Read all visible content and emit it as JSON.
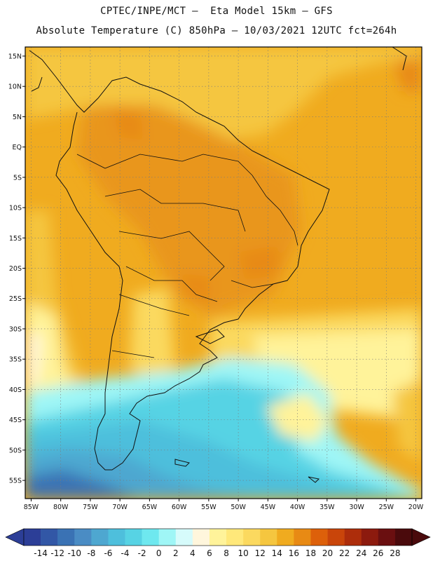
{
  "header": {
    "line1": "CPTEC/INPE/MCT –  Eta Model 15km – GFS",
    "line2": "Absolute Temperature (C) 850hPa – 10/03/2021 12UTC fct=264h"
  },
  "map": {
    "lon_range": [
      -86,
      -19
    ],
    "lat_range": [
      -58,
      16.5
    ],
    "lat_ticks": [
      "15N",
      "10N",
      "5N",
      "EQ",
      "5S",
      "10S",
      "15S",
      "20S",
      "25S",
      "30S",
      "35S",
      "40S",
      "45S",
      "50S",
      "55S"
    ],
    "lat_values": [
      15,
      10,
      5,
      0,
      -5,
      -10,
      -15,
      -20,
      -25,
      -30,
      -35,
      -40,
      -45,
      -50,
      -55
    ],
    "lon_ticks": [
      "85W",
      "80W",
      "75W",
      "70W",
      "65W",
      "60W",
      "55W",
      "50W",
      "45W",
      "40W",
      "35W",
      "30W",
      "25W",
      "20W"
    ],
    "lon_values": [
      -85,
      -80,
      -75,
      -70,
      -65,
      -60,
      -55,
      -50,
      -45,
      -40,
      -35,
      -30,
      -25,
      -20
    ],
    "grid": true
  },
  "colorbar": {
    "labels": [
      "-14",
      "-12",
      "-10",
      "-8",
      "-6",
      "-4",
      "-2",
      "0",
      "2",
      "4",
      "6",
      "8",
      "10",
      "12",
      "14",
      "16",
      "18",
      "20",
      "22",
      "24",
      "26",
      "28"
    ],
    "colors": [
      "#2c3e97",
      "#3257a6",
      "#3a72b4",
      "#4a8cc4",
      "#4ea7d0",
      "#4ebfdc",
      "#57d3e4",
      "#6ee8ef",
      "#9ff6f6",
      "#d6fbfb",
      "#fff6dc",
      "#fff39a",
      "#ffe87a",
      "#fbd95f",
      "#f5c63f",
      "#f0ab1f",
      "#e88a14",
      "#dd600a",
      "#c9450a",
      "#ad2d0b",
      "#8c1a0e",
      "#6a0f10",
      "#4a0a0c"
    ]
  }
}
